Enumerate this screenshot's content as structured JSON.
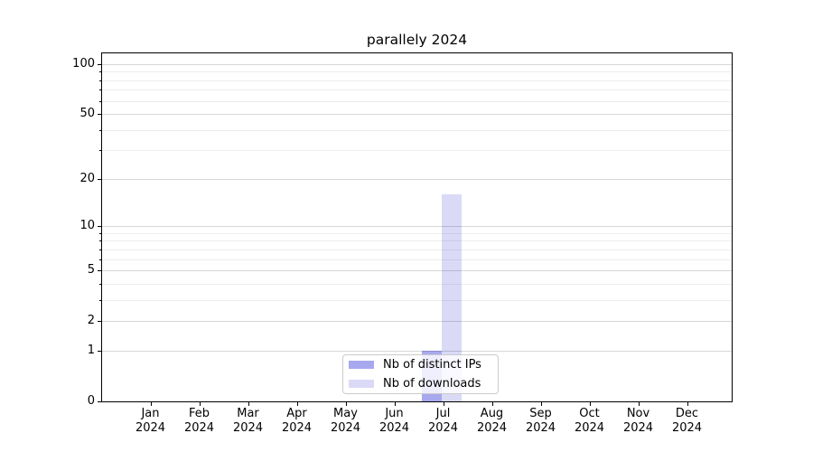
{
  "chart_data": {
    "type": "bar",
    "title": "parallely 2024",
    "categories": [
      "Jan",
      "Feb",
      "Mar",
      "Apr",
      "May",
      "Jun",
      "Jul",
      "Aug",
      "Sep",
      "Oct",
      "Nov",
      "Dec"
    ],
    "category_year": "2024",
    "series": [
      {
        "name": "Nb of distinct IPs",
        "color": "#a8a8ef",
        "values": [
          0,
          0,
          0,
          0,
          0,
          0,
          1,
          0,
          0,
          0,
          0,
          0
        ]
      },
      {
        "name": "Nb of downloads",
        "color": "#dadaf7",
        "values": [
          0,
          0,
          0,
          0,
          0,
          0,
          16,
          0,
          0,
          0,
          0,
          0
        ]
      }
    ],
    "xlabel": "",
    "ylabel": "",
    "yscale": "log1p (symlog-like, 0 at baseline)",
    "ylim": [
      0,
      116
    ],
    "yticks": [
      0,
      1,
      2,
      5,
      10,
      20,
      50,
      100
    ],
    "yticks_minor": [
      3,
      4,
      6,
      7,
      8,
      9,
      30,
      40,
      60,
      70,
      80,
      90
    ],
    "grid": {
      "axis": "y",
      "major": true,
      "minor": true
    },
    "legend": {
      "position": "lower center",
      "entries": [
        "Nb of distinct IPs",
        "Nb of downloads"
      ]
    },
    "colors": {
      "spine": "#000000",
      "text": "#000000",
      "grid_major": "#d8d8d8",
      "grid_minor": "#ededed"
    }
  }
}
